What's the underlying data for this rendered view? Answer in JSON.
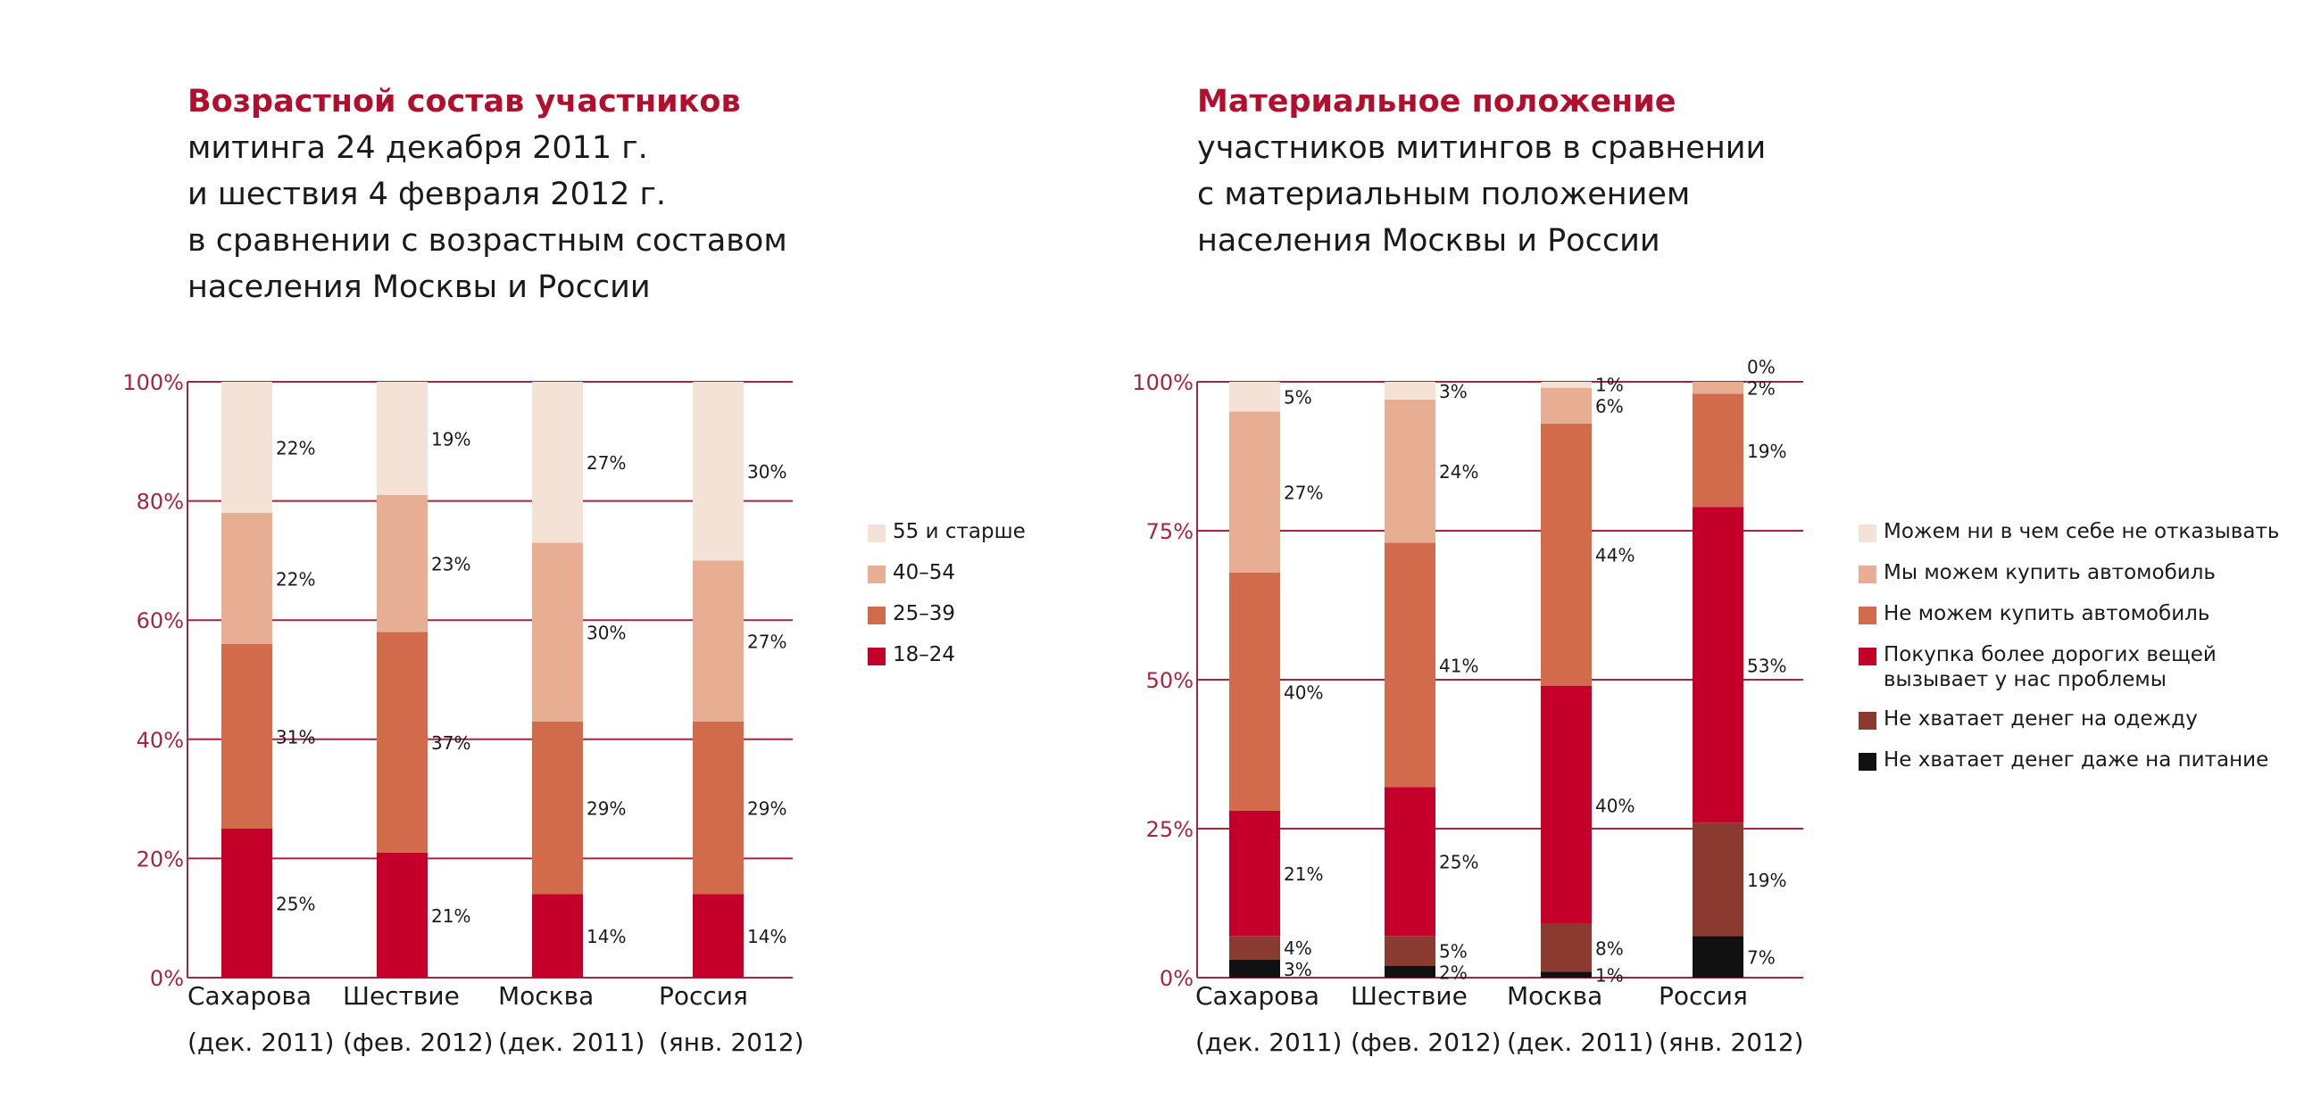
{
  "charts": [
    {
      "title_highlight": "Возрастной состав участников",
      "title_lines": [
        "митинга 24 декабря 2011 г.",
        "и шествия 4 февраля 2012 г.",
        "в сравнении с возрастным составом",
        "населения Москвы и России"
      ]
    },
    {
      "title_highlight": "Материальное положение",
      "title_lines": [
        "участников митингов  в сравнении",
        "с материальным положением",
        "населения Москвы и России"
      ]
    }
  ],
  "chart_data": [
    {
      "type": "bar",
      "stacked": true,
      "categories": [
        [
          "Сахарова",
          "(дек. 2011)"
        ],
        [
          "Шествие",
          "(фев. 2012)"
        ],
        [
          "Москва",
          "(дек. 2011)"
        ],
        [
          "Россия",
          "(янв. 2012)"
        ]
      ],
      "series": [
        {
          "name": "18–24",
          "color": "#c4002a",
          "values": [
            25,
            21,
            14,
            14
          ]
        },
        {
          "name": "25–39",
          "color": "#d16b4c",
          "values": [
            31,
            37,
            29,
            29
          ]
        },
        {
          "name": "40–54",
          "color": "#e7ae94",
          "values": [
            22,
            23,
            30,
            27
          ]
        },
        {
          "name": "55 и старше",
          "color": "#f5e2d6",
          "values": [
            22,
            19,
            27,
            30
          ]
        }
      ],
      "legend_order": [
        "55 и старше",
        "40–54",
        "25–39",
        "18–24"
      ],
      "y_ticks": [
        "0%",
        "20%",
        "40%",
        "60%",
        "80%",
        "100%"
      ],
      "ylim": [
        0,
        100
      ],
      "grid": true,
      "legend_position": "right"
    },
    {
      "type": "bar",
      "stacked": true,
      "categories": [
        [
          "Сахарова",
          "(дек. 2011)"
        ],
        [
          "Шествие",
          "(фев. 2012)"
        ],
        [
          "Москва",
          "(дек. 2011)"
        ],
        [
          "Россия",
          "(янв. 2012)"
        ]
      ],
      "series": [
        {
          "name": "Не хватает денег даже на питание",
          "color": "#111111",
          "values": [
            3,
            2,
            1,
            7
          ]
        },
        {
          "name": "Не хватает денег на одежду",
          "color": "#8b3a2f",
          "values": [
            4,
            5,
            8,
            19
          ]
        },
        {
          "name": "Покупка более дорогих вещей вызывает у нас проблемы",
          "color": "#c4002a",
          "values": [
            21,
            25,
            40,
            53
          ]
        },
        {
          "name": "Не можем купить автомобиль",
          "color": "#d16b4c",
          "values": [
            40,
            41,
            44,
            19
          ]
        },
        {
          "name": "Мы можем купить автомобиль",
          "color": "#e7ae94",
          "values": [
            27,
            24,
            6,
            2
          ]
        },
        {
          "name": "Можем ни в чем себе не отказывать",
          "color": "#f5e2d6",
          "values": [
            5,
            3,
            1,
            0
          ]
        }
      ],
      "legend_order": [
        [
          "Можем ни в чем себе не отказывать"
        ],
        [
          "Мы можем купить автомобиль"
        ],
        [
          "Не можем купить автомобиль"
        ],
        [
          "Покупка более дорогих вещей",
          "вызывает у нас проблемы"
        ],
        [
          "Не хватает денег на одежду"
        ],
        [
          "Не хватает денег даже на питание"
        ]
      ],
      "y_ticks": [
        "0%",
        "25%",
        "50%",
        "75%",
        "100%"
      ],
      "ylim": [
        0,
        100
      ],
      "grid": true,
      "legend_position": "right"
    }
  ]
}
